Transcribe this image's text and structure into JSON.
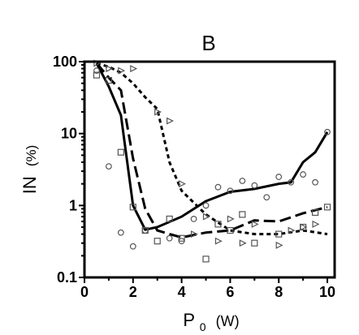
{
  "chart_data": {
    "type": "scatter",
    "title": "B",
    "xlabel": "P",
    "xlabel_subscript": "0",
    "xlabel_unit": "(W)",
    "ylabel": "IN",
    "ylabel_unit": "(%)",
    "xlim": [
      0,
      10.3
    ],
    "ylim": [
      0.1,
      100
    ],
    "yscale": "log",
    "x_ticks": [
      0,
      2,
      4,
      6,
      8,
      10
    ],
    "y_ticks": [
      0.1,
      1,
      10,
      100
    ],
    "y_tick_labels": [
      "0.1",
      "1",
      "10",
      "100"
    ],
    "grid": false,
    "lines": [
      {
        "style": "solid",
        "x": [
          0.5,
          1.0,
          1.5,
          2.0,
          2.5,
          3.0,
          4.0,
          5.0,
          6.0,
          7.0,
          8.0,
          8.5,
          9.0,
          9.5,
          10.0
        ],
        "y": [
          95,
          45,
          18,
          1.0,
          0.46,
          0.5,
          0.7,
          1.15,
          1.55,
          1.7,
          2.0,
          2.1,
          4.0,
          5.5,
          10.5
        ]
      },
      {
        "style": "dashed",
        "x": [
          0.5,
          1.0,
          1.5,
          2.0,
          2.5,
          3.0,
          3.5,
          4.0,
          5.0,
          6.0,
          7.0,
          8.0,
          9.0,
          10.0
        ],
        "y": [
          95,
          60,
          40,
          4.5,
          0.9,
          0.45,
          0.4,
          0.36,
          0.42,
          0.45,
          0.62,
          0.6,
          0.78,
          0.95
        ]
      },
      {
        "style": "dotted",
        "x": [
          0.5,
          1.0,
          1.5,
          2.0,
          2.5,
          3.0,
          3.5,
          4.0,
          5.0,
          6.0,
          7.0,
          8.0,
          9.0,
          10.0
        ],
        "y": [
          95,
          85,
          70,
          50,
          32,
          22,
          4.0,
          1.6,
          0.75,
          0.45,
          0.4,
          0.4,
          0.45,
          0.4
        ]
      }
    ],
    "markers": [
      {
        "shape": "circle",
        "x": [
          0.5,
          1.0,
          1.5,
          2.0,
          2.5,
          3.5,
          4.0,
          4.5,
          5.0,
          5.5,
          6.0,
          6.5,
          7.0,
          7.5,
          8.0,
          8.5,
          9.0,
          9.5,
          10.0
        ],
        "y": [
          75,
          3.5,
          0.42,
          0.27,
          0.45,
          0.35,
          0.32,
          0.65,
          1.0,
          1.8,
          1.6,
          2.2,
          1.9,
          1.3,
          2.5,
          2.1,
          2.7,
          2.1,
          10.5
        ]
      },
      {
        "shape": "square",
        "x": [
          0.5,
          1.0,
          1.5,
          2.0,
          2.5,
          3.0,
          3.5,
          4.0,
          5.0,
          5.5,
          6.0,
          6.5,
          7.0,
          8.0,
          9.0,
          9.5,
          10.0
        ],
        "y": [
          65,
          55,
          5.5,
          0.95,
          0.45,
          0.32,
          0.65,
          0.35,
          0.18,
          0.55,
          0.45,
          0.75,
          0.3,
          0.4,
          0.5,
          0.8,
          0.95
        ]
      },
      {
        "shape": "triangle",
        "x": [
          0.5,
          1.0,
          1.5,
          2.0,
          3.0,
          3.5,
          4.0,
          4.5,
          5.0,
          5.5,
          6.0,
          6.5,
          7.0,
          8.0,
          8.5,
          9.0,
          9.5
        ],
        "y": [
          95,
          80,
          75,
          80,
          20,
          15,
          2.0,
          0.4,
          0.7,
          0.32,
          0.65,
          0.3,
          0.55,
          0.28,
          0.45,
          0.5,
          0.55
        ]
      }
    ]
  }
}
